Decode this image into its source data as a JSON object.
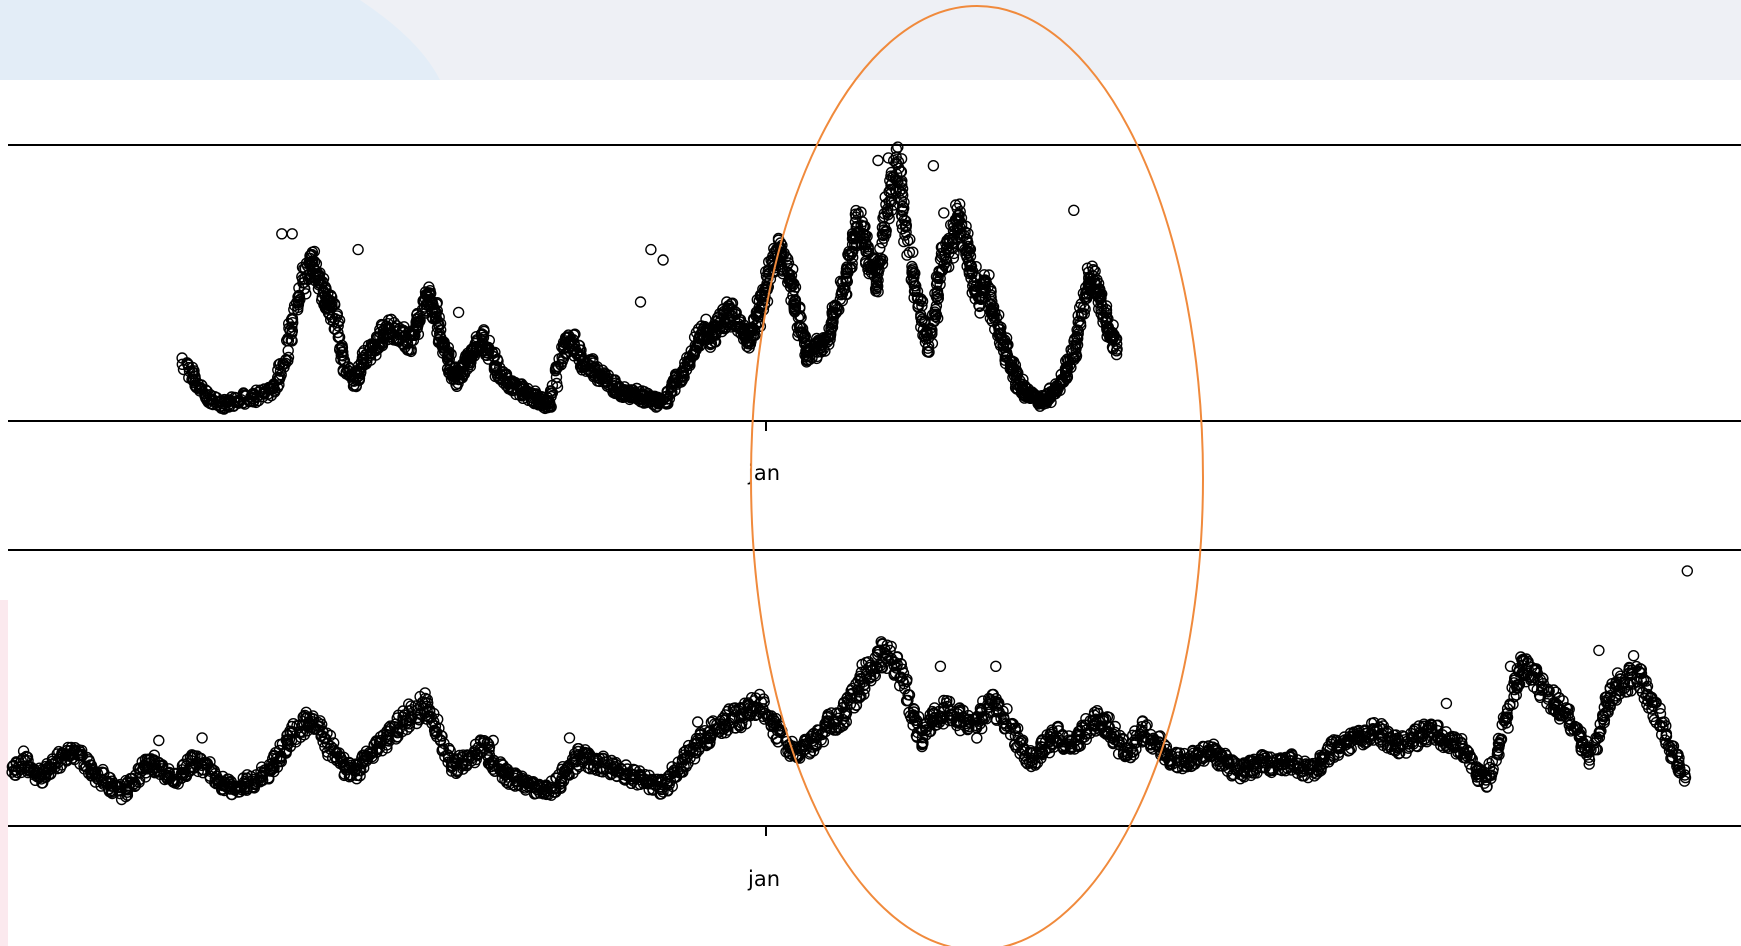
{
  "colors": {
    "background": "#ffffff",
    "backdrop_band": "#eef0f5",
    "backdrop_swoosh": "#e3edf7",
    "left_accent": "#fbe9ee",
    "axis": "#000000",
    "point_stroke": "#000000",
    "highlight_ellipse": "#f08a3c"
  },
  "chart_data": [
    {
      "type": "scatter",
      "panel": "top",
      "title": "",
      "xlabel": "",
      "ylabel": "",
      "x_ticks": [
        {
          "label": "jan"
        }
      ],
      "xlim": [
        0,
        100
      ],
      "ylim": [
        0,
        100
      ],
      "marker": "open-circle",
      "series": [
        {
          "values": [
            [
              10.2,
              18
            ],
            [
              11.0,
              10
            ],
            [
              11.8,
              4
            ],
            [
              12.6,
              3
            ],
            [
              13.5,
              5
            ],
            [
              14.4,
              6
            ],
            [
              15.3,
              8
            ],
            [
              16.0,
              20
            ],
            [
              16.6,
              38
            ],
            [
              17.1,
              52
            ],
            [
              17.6,
              58
            ],
            [
              18.0,
              48
            ],
            [
              18.4,
              42
            ],
            [
              18.8,
              38
            ],
            [
              19.3,
              22
            ],
            [
              19.9,
              10
            ],
            [
              20.5,
              18
            ],
            [
              21.0,
              24
            ],
            [
              21.5,
              28
            ],
            [
              22.0,
              32
            ],
            [
              22.6,
              30
            ],
            [
              23.2,
              26
            ],
            [
              23.7,
              34
            ],
            [
              24.2,
              46
            ],
            [
              24.6,
              38
            ],
            [
              25.0,
              28
            ],
            [
              25.4,
              20
            ],
            [
              25.8,
              12
            ],
            [
              26.3,
              16
            ],
            [
              26.8,
              22
            ],
            [
              27.3,
              28
            ],
            [
              27.8,
              22
            ],
            [
              28.4,
              14
            ],
            [
              29.0,
              10
            ],
            [
              29.6,
              8
            ],
            [
              30.2,
              6
            ],
            [
              30.8,
              4
            ],
            [
              31.3,
              3
            ],
            [
              31.9,
              22
            ],
            [
              32.5,
              28
            ],
            [
              33.0,
              20
            ],
            [
              33.6,
              18
            ],
            [
              34.2,
              14
            ],
            [
              34.8,
              10
            ],
            [
              35.4,
              8
            ],
            [
              36.0,
              7
            ],
            [
              36.6,
              6
            ],
            [
              37.2,
              4
            ],
            [
              37.8,
              3
            ],
            [
              38.4,
              10
            ],
            [
              39.0,
              16
            ],
            [
              39.6,
              24
            ],
            [
              40.1,
              32
            ],
            [
              40.6,
              28
            ],
            [
              41.1,
              34
            ],
            [
              41.6,
              38
            ],
            [
              42.1,
              34
            ],
            [
              42.6,
              28
            ],
            [
              43.0,
              30
            ],
            [
              43.4,
              40
            ],
            [
              43.8,
              48
            ],
            [
              44.2,
              58
            ],
            [
              44.6,
              62
            ],
            [
              45.0,
              54
            ],
            [
              45.4,
              42
            ],
            [
              45.8,
              30
            ],
            [
              46.2,
              22
            ],
            [
              46.7,
              24
            ],
            [
              47.2,
              28
            ],
            [
              47.7,
              36
            ],
            [
              48.2,
              48
            ],
            [
              48.6,
              60
            ],
            [
              49.0,
              72
            ],
            [
              49.4,
              66
            ],
            [
              49.8,
              56
            ],
            [
              50.2,
              50
            ],
            [
              50.6,
              70
            ],
            [
              51.0,
              86
            ],
            [
              51.4,
              94
            ],
            [
              51.8,
              72
            ],
            [
              52.2,
              50
            ],
            [
              52.7,
              36
            ],
            [
              53.2,
              24
            ],
            [
              53.6,
              46
            ],
            [
              54.0,
              58
            ],
            [
              54.4,
              62
            ],
            [
              54.8,
              74
            ],
            [
              55.2,
              66
            ],
            [
              55.6,
              54
            ],
            [
              56.0,
              42
            ],
            [
              56.4,
              50
            ],
            [
              56.8,
              38
            ],
            [
              57.2,
              30
            ],
            [
              57.6,
              22
            ],
            [
              58.1,
              14
            ],
            [
              58.6,
              8
            ],
            [
              59.1,
              6
            ],
            [
              59.6,
              4
            ],
            [
              60.1,
              6
            ],
            [
              60.6,
              10
            ],
            [
              61.1,
              16
            ],
            [
              61.6,
              24
            ],
            [
              62.0,
              40
            ],
            [
              62.4,
              52
            ],
            [
              62.8,
              48
            ],
            [
              63.2,
              38
            ],
            [
              63.6,
              30
            ],
            [
              64.0,
              24
            ]
          ]
        },
        {
          "name": "",
          "values": [
            [
              15.8,
              68
            ],
            [
              16.4,
              68
            ],
            [
              20.2,
              62
            ],
            [
              26.0,
              38
            ],
            [
              36.5,
              42
            ],
            [
              37.1,
              62
            ],
            [
              37.8,
              58
            ],
            [
              50.2,
              96
            ],
            [
              50.8,
              97
            ],
            [
              51.7,
              80
            ],
            [
              53.4,
              94
            ],
            [
              54.0,
              76
            ],
            [
              54.8,
              75
            ],
            [
              61.5,
              77
            ]
          ]
        }
      ]
    },
    {
      "type": "scatter",
      "panel": "bottom",
      "title": "",
      "xlabel": "",
      "ylabel": "",
      "x_ticks": [
        {
          "label": "jan"
        }
      ],
      "xlim": [
        0,
        100
      ],
      "ylim": [
        0,
        100
      ],
      "marker": "open-circle",
      "series": [
        {
          "values": [
            [
              0.2,
              18
            ],
            [
              1.0,
              22
            ],
            [
              1.8,
              16
            ],
            [
              2.6,
              20
            ],
            [
              3.4,
              26
            ],
            [
              4.2,
              24
            ],
            [
              5.0,
              18
            ],
            [
              5.8,
              14
            ],
            [
              6.6,
              10
            ],
            [
              7.4,
              16
            ],
            [
              8.2,
              22
            ],
            [
              9.0,
              18
            ],
            [
              9.8,
              16
            ],
            [
              10.6,
              22
            ],
            [
              11.4,
              20
            ],
            [
              12.2,
              14
            ],
            [
              13.0,
              12
            ],
            [
              13.8,
              14
            ],
            [
              14.6,
              16
            ],
            [
              15.4,
              22
            ],
            [
              16.2,
              30
            ],
            [
              17.0,
              36
            ],
            [
              17.8,
              38
            ],
            [
              18.6,
              28
            ],
            [
              19.4,
              20
            ],
            [
              20.2,
              18
            ],
            [
              21.0,
              26
            ],
            [
              21.8,
              30
            ],
            [
              22.6,
              36
            ],
            [
              23.4,
              40
            ],
            [
              24.2,
              44
            ],
            [
              25.0,
              30
            ],
            [
              25.8,
              20
            ],
            [
              26.6,
              24
            ],
            [
              27.4,
              28
            ],
            [
              28.2,
              20
            ],
            [
              29.0,
              16
            ],
            [
              29.8,
              14
            ],
            [
              30.6,
              12
            ],
            [
              31.4,
              12
            ],
            [
              32.2,
              18
            ],
            [
              33.0,
              24
            ],
            [
              33.8,
              22
            ],
            [
              34.6,
              20
            ],
            [
              35.4,
              18
            ],
            [
              36.2,
              16
            ],
            [
              37.0,
              14
            ],
            [
              37.8,
              12
            ],
            [
              38.6,
              18
            ],
            [
              39.4,
              26
            ],
            [
              40.2,
              30
            ],
            [
              41.0,
              36
            ],
            [
              41.8,
              38
            ],
            [
              42.6,
              40
            ],
            [
              43.4,
              44
            ],
            [
              44.2,
              36
            ],
            [
              45.0,
              28
            ],
            [
              45.8,
              26
            ],
            [
              46.6,
              30
            ],
            [
              47.4,
              36
            ],
            [
              48.2,
              40
            ],
            [
              49.0,
              48
            ],
            [
              49.6,
              56
            ],
            [
              50.4,
              62
            ],
            [
              51.2,
              60
            ],
            [
              52.0,
              44
            ],
            [
              52.8,
              30
            ],
            [
              53.4,
              38
            ],
            [
              54.2,
              42
            ],
            [
              55.0,
              38
            ],
            [
              55.8,
              34
            ],
            [
              56.6,
              44
            ],
            [
              57.4,
              40
            ],
            [
              58.2,
              30
            ],
            [
              59.0,
              22
            ],
            [
              59.8,
              28
            ],
            [
              60.6,
              32
            ],
            [
              61.4,
              28
            ],
            [
              62.2,
              34
            ],
            [
              63.0,
              38
            ],
            [
              63.8,
              32
            ],
            [
              64.6,
              24
            ],
            [
              65.4,
              34
            ],
            [
              66.2,
              30
            ],
            [
              67.0,
              24
            ],
            [
              67.8,
              22
            ],
            [
              68.6,
              24
            ],
            [
              69.4,
              26
            ],
            [
              70.2,
              22
            ],
            [
              71.0,
              18
            ],
            [
              71.8,
              20
            ],
            [
              72.6,
              22
            ],
            [
              73.4,
              20
            ],
            [
              74.2,
              22
            ],
            [
              75.0,
              18
            ],
            [
              75.8,
              22
            ],
            [
              76.6,
              28
            ],
            [
              77.4,
              30
            ],
            [
              78.2,
              32
            ],
            [
              79.0,
              34
            ],
            [
              79.8,
              30
            ],
            [
              80.6,
              28
            ],
            [
              81.4,
              32
            ],
            [
              82.2,
              34
            ],
            [
              83.0,
              30
            ],
            [
              83.8,
              28
            ],
            [
              84.6,
              20
            ],
            [
              85.4,
              14
            ],
            [
              86.2,
              30
            ],
            [
              86.8,
              48
            ],
            [
              87.4,
              58
            ],
            [
              88.2,
              52
            ],
            [
              89.0,
              46
            ],
            [
              89.8,
              42
            ],
            [
              90.6,
              32
            ],
            [
              91.4,
              24
            ],
            [
              92.2,
              44
            ],
            [
              92.8,
              50
            ],
            [
              93.6,
              54
            ],
            [
              94.4,
              52
            ],
            [
              95.2,
              40
            ],
            [
              96.0,
              26
            ],
            [
              96.8,
              16
            ]
          ]
        },
        {
          "name": "",
          "values": [
            [
              0.9,
              26
            ],
            [
              8.7,
              30
            ],
            [
              11.2,
              31
            ],
            [
              28.0,
              30
            ],
            [
              32.4,
              31
            ],
            [
              39.8,
              37
            ],
            [
              42.3,
              40
            ],
            [
              50.9,
              64
            ],
            [
              53.8,
              58
            ],
            [
              57.0,
              58
            ],
            [
              83.0,
              44
            ],
            [
              86.7,
              58
            ],
            [
              88.2,
              57
            ],
            [
              91.8,
              64
            ],
            [
              93.8,
              62
            ],
            [
              96.9,
              94
            ]
          ]
        }
      ]
    }
  ]
}
